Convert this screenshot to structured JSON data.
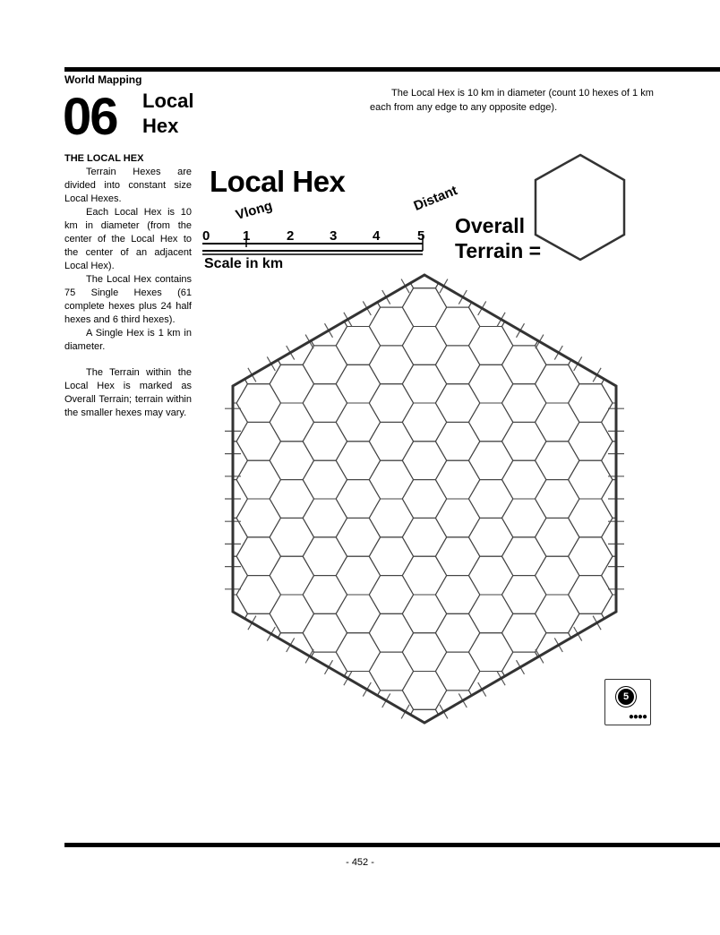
{
  "header": {
    "section": "World Mapping",
    "chapter_number": "06",
    "chapter_title_line1": "Local",
    "chapter_title_line2": "Hex"
  },
  "intro": "The Local Hex is 10 km in diameter (count 10 hexes of 1 km each from any edge to any opposite edge).",
  "column": {
    "heading": "THE LOCAL HEX",
    "paragraphs": [
      "Terrain Hexes are divided into constant size Local Hexes.",
      "Each Local Hex is 10 km in diameter (from the center of the Local Hex to the center of an adjacent Local Hex).",
      "The Local Hex contains 75 Single Hexes (61 complete hexes plus 24 half hexes and 6 third hexes).",
      "A Single Hex is 1 km in diameter.",
      "The Terrain within the Local Hex is marked as Overall Terrain; terrain within the smaller hexes may vary."
    ]
  },
  "figure": {
    "title": "Local Hex",
    "scale_numbers": [
      "0",
      "1",
      "2",
      "3",
      "4",
      "5"
    ],
    "scale_label": "Scale in km",
    "vlong_label": "Vlong",
    "distant_label": "Distant",
    "overall_line1": "Overall",
    "overall_line2": "Terrain =",
    "badge_number": "5",
    "badge_dots": "●●●●"
  },
  "footer": {
    "page_number": "- 452 -"
  }
}
